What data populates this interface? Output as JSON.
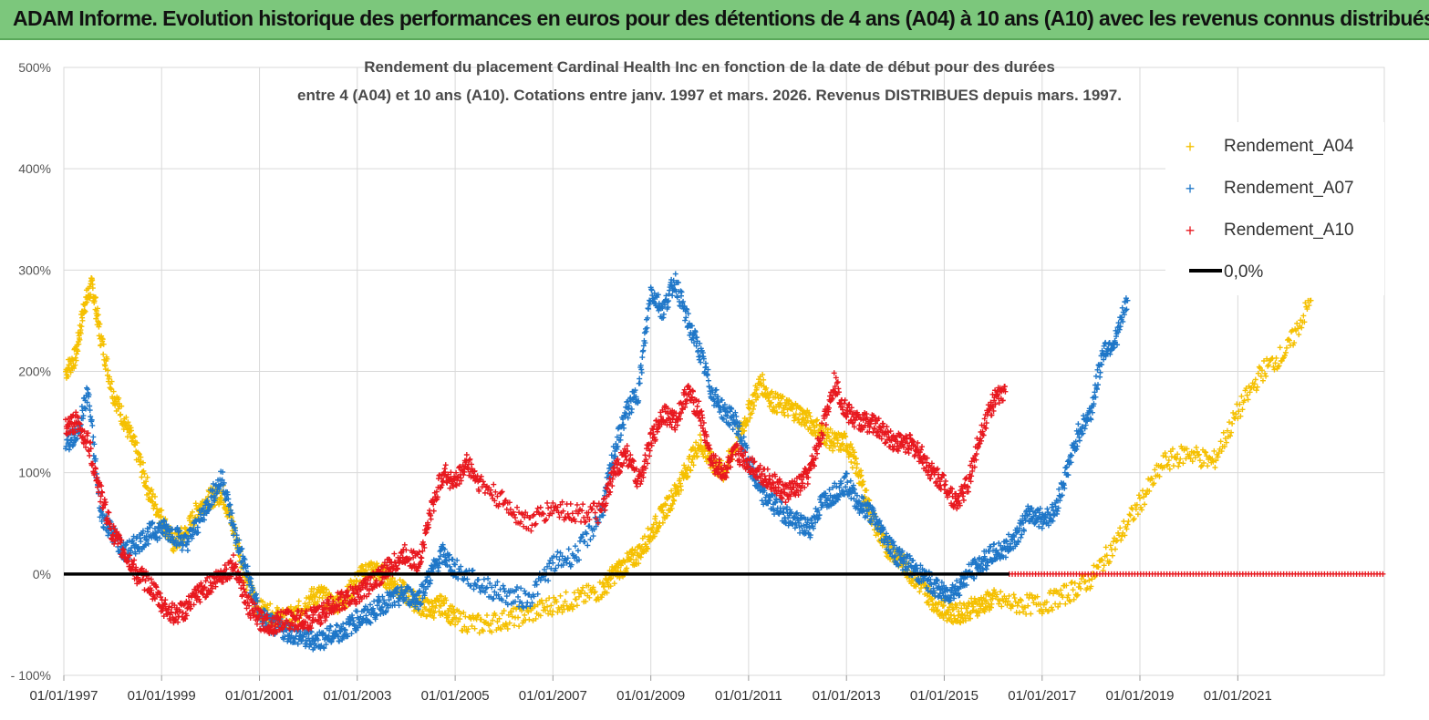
{
  "banner": {
    "title": "ADAM Informe. Evolution historique des performances en euros pour des détentions de 4 ans (A04) à 10 ans (A10) avec les revenus connus distribués"
  },
  "chart_data": {
    "type": "scatter",
    "title_lines": [
      "Rendement du placement Cardinal Health Inc en fonction de la date de début pour des durées",
      "entre 4 (A04) et 10 ans (A10). Cotations entre janv. 1997 et mars. 2026. Revenus DISTRIBUES depuis mars. 1997."
    ],
    "xlim": [
      "1997-01-01",
      "2023-12-31"
    ],
    "ylim": [
      -100,
      500
    ],
    "x_ticks": [
      "01/01/1997",
      "01/01/1999",
      "01/01/2001",
      "01/01/2003",
      "01/01/2005",
      "01/01/2007",
      "01/01/2009",
      "01/01/2011",
      "01/01/2013",
      "01/01/2015",
      "01/01/2017",
      "01/01/2019",
      "01/01/2021"
    ],
    "y_ticks": [
      {
        "value": -100,
        "label": "- 100%"
      },
      {
        "value": 0,
        "label": "0%"
      },
      {
        "value": 100,
        "label": "100%"
      },
      {
        "value": 200,
        "label": "200%"
      },
      {
        "value": 300,
        "label": "300%"
      },
      {
        "value": 400,
        "label": "400%"
      },
      {
        "value": 500,
        "label": "500%"
      }
    ],
    "grid": true,
    "legend_position": "top-right",
    "reference_line": {
      "name": "0,0%",
      "value": 0,
      "color": "#000000"
    },
    "series": [
      {
        "name": "Rendement_A04",
        "color": "#f5c000",
        "points": [
          [
            "1997-01-15",
            200
          ],
          [
            "1997-04-01",
            215
          ],
          [
            "1997-06-01",
            265
          ],
          [
            "1997-08-01",
            285
          ],
          [
            "1997-10-01",
            235
          ],
          [
            "1998-01-01",
            180
          ],
          [
            "1998-04-01",
            150
          ],
          [
            "1998-07-01",
            120
          ],
          [
            "1998-10-01",
            80
          ],
          [
            "1999-01-01",
            55
          ],
          [
            "1999-04-01",
            30
          ],
          [
            "1999-07-01",
            40
          ],
          [
            "1999-10-01",
            65
          ],
          [
            "2000-01-01",
            75
          ],
          [
            "2000-04-01",
            80
          ],
          [
            "2000-07-01",
            40
          ],
          [
            "2000-10-01",
            -10
          ],
          [
            "2001-01-01",
            -35
          ],
          [
            "2001-04-01",
            -40
          ],
          [
            "2001-07-01",
            -45
          ],
          [
            "2001-10-01",
            -40
          ],
          [
            "2002-01-01",
            -25
          ],
          [
            "2002-04-01",
            -20
          ],
          [
            "2002-07-01",
            -30
          ],
          [
            "2002-10-01",
            -25
          ],
          [
            "2003-01-01",
            -5
          ],
          [
            "2003-04-01",
            5
          ],
          [
            "2003-07-01",
            0
          ],
          [
            "2003-10-01",
            -10
          ],
          [
            "2004-01-01",
            -20
          ],
          [
            "2004-04-01",
            -30
          ],
          [
            "2004-07-01",
            -35
          ],
          [
            "2004-10-01",
            -30
          ],
          [
            "2005-01-01",
            -45
          ],
          [
            "2005-07-01",
            -50
          ],
          [
            "2006-01-01",
            -45
          ],
          [
            "2006-07-01",
            -40
          ],
          [
            "2007-01-01",
            -30
          ],
          [
            "2007-07-01",
            -25
          ],
          [
            "2008-01-01",
            -15
          ],
          [
            "2008-04-01",
            0
          ],
          [
            "2008-07-01",
            10
          ],
          [
            "2008-10-01",
            20
          ],
          [
            "2009-01-01",
            40
          ],
          [
            "2009-04-01",
            60
          ],
          [
            "2009-07-01",
            80
          ],
          [
            "2009-10-01",
            105
          ],
          [
            "2010-01-01",
            130
          ],
          [
            "2010-04-01",
            110
          ],
          [
            "2010-07-01",
            100
          ],
          [
            "2010-10-01",
            130
          ],
          [
            "2011-01-01",
            160
          ],
          [
            "2011-04-01",
            190
          ],
          [
            "2011-07-01",
            170
          ],
          [
            "2011-10-01",
            165
          ],
          [
            "2012-01-01",
            160
          ],
          [
            "2012-04-01",
            150
          ],
          [
            "2012-07-01",
            140
          ],
          [
            "2012-10-01",
            130
          ],
          [
            "2013-01-01",
            130
          ],
          [
            "2013-04-01",
            100
          ],
          [
            "2013-07-01",
            60
          ],
          [
            "2013-10-01",
            30
          ],
          [
            "2014-01-01",
            20
          ],
          [
            "2014-04-01",
            5
          ],
          [
            "2014-07-01",
            -10
          ],
          [
            "2014-10-01",
            -25
          ],
          [
            "2015-01-01",
            -35
          ],
          [
            "2015-04-01",
            -40
          ],
          [
            "2015-07-01",
            -35
          ],
          [
            "2015-10-01",
            -30
          ],
          [
            "2016-01-01",
            -25
          ],
          [
            "2016-07-01",
            -30
          ],
          [
            "2017-01-01",
            -30
          ],
          [
            "2017-07-01",
            -20
          ],
          [
            "2018-01-01",
            -5
          ],
          [
            "2018-07-01",
            30
          ],
          [
            "2019-01-01",
            70
          ],
          [
            "2019-07-01",
            110
          ],
          [
            "2020-01-01",
            120
          ],
          [
            "2020-07-01",
            110
          ],
          [
            "2021-01-01",
            160
          ],
          [
            "2021-07-01",
            200
          ],
          [
            "2022-01-01",
            220
          ],
          [
            "2022-07-01",
            270
          ]
        ]
      },
      {
        "name": "Rendement_A07",
        "color": "#1f77c8",
        "points": [
          [
            "1997-01-15",
            130
          ],
          [
            "1997-04-01",
            135
          ],
          [
            "1997-07-01",
            180
          ],
          [
            "1997-10-01",
            60
          ],
          [
            "1998-01-01",
            40
          ],
          [
            "1998-04-01",
            20
          ],
          [
            "1998-07-01",
            30
          ],
          [
            "1998-10-01",
            40
          ],
          [
            "1999-01-01",
            45
          ],
          [
            "1999-04-01",
            40
          ],
          [
            "1999-07-01",
            30
          ],
          [
            "1999-10-01",
            50
          ],
          [
            "2000-01-01",
            75
          ],
          [
            "2000-04-01",
            95
          ],
          [
            "2000-07-01",
            40
          ],
          [
            "2000-10-01",
            0
          ],
          [
            "2001-01-01",
            -40
          ],
          [
            "2001-04-01",
            -50
          ],
          [
            "2001-07-01",
            -55
          ],
          [
            "2001-10-01",
            -60
          ],
          [
            "2002-01-01",
            -65
          ],
          [
            "2002-04-01",
            -65
          ],
          [
            "2002-07-01",
            -60
          ],
          [
            "2002-10-01",
            -55
          ],
          [
            "2003-01-01",
            -45
          ],
          [
            "2003-04-01",
            -40
          ],
          [
            "2003-07-01",
            -30
          ],
          [
            "2003-10-01",
            -25
          ],
          [
            "2004-01-01",
            -20
          ],
          [
            "2004-04-01",
            -25
          ],
          [
            "2004-07-01",
            0
          ],
          [
            "2004-10-01",
            20
          ],
          [
            "2005-01-01",
            5
          ],
          [
            "2005-07-01",
            -10
          ],
          [
            "2006-01-01",
            -20
          ],
          [
            "2006-07-01",
            -25
          ],
          [
            "2007-01-01",
            10
          ],
          [
            "2007-07-01",
            20
          ],
          [
            "2008-01-01",
            60
          ],
          [
            "2008-04-01",
            120
          ],
          [
            "2008-07-01",
            160
          ],
          [
            "2008-10-01",
            180
          ],
          [
            "2009-01-01",
            280
          ],
          [
            "2009-04-01",
            260
          ],
          [
            "2009-07-01",
            290
          ],
          [
            "2009-10-01",
            250
          ],
          [
            "2010-01-01",
            220
          ],
          [
            "2010-04-01",
            180
          ],
          [
            "2010-07-01",
            160
          ],
          [
            "2010-10-01",
            150
          ],
          [
            "2011-01-01",
            110
          ],
          [
            "2011-04-01",
            80
          ],
          [
            "2011-07-01",
            70
          ],
          [
            "2011-10-01",
            60
          ],
          [
            "2012-01-01",
            50
          ],
          [
            "2012-04-01",
            45
          ],
          [
            "2012-07-01",
            70
          ],
          [
            "2012-10-01",
            80
          ],
          [
            "2013-01-01",
            90
          ],
          [
            "2013-04-01",
            70
          ],
          [
            "2013-07-01",
            60
          ],
          [
            "2013-10-01",
            40
          ],
          [
            "2014-01-01",
            20
          ],
          [
            "2014-04-01",
            10
          ],
          [
            "2014-07-01",
            0
          ],
          [
            "2014-10-01",
            -10
          ],
          [
            "2015-01-01",
            -20
          ],
          [
            "2015-04-01",
            -15
          ],
          [
            "2015-07-01",
            0
          ],
          [
            "2015-10-01",
            10
          ],
          [
            "2016-01-01",
            20
          ],
          [
            "2016-04-01",
            25
          ],
          [
            "2016-07-01",
            40
          ],
          [
            "2016-10-01",
            60
          ],
          [
            "2017-01-01",
            55
          ],
          [
            "2017-04-01",
            60
          ],
          [
            "2017-07-01",
            100
          ],
          [
            "2017-10-01",
            140
          ],
          [
            "2018-01-01",
            160
          ],
          [
            "2018-04-01",
            220
          ],
          [
            "2018-07-01",
            230
          ],
          [
            "2018-10-01",
            270
          ]
        ]
      },
      {
        "name": "Rendement_A10",
        "color": "#e8181f",
        "points": [
          [
            "1997-01-15",
            145
          ],
          [
            "1997-04-01",
            150
          ],
          [
            "1997-07-01",
            130
          ],
          [
            "1997-10-01",
            80
          ],
          [
            "1998-01-01",
            40
          ],
          [
            "1998-04-01",
            20
          ],
          [
            "1998-07-01",
            0
          ],
          [
            "1998-10-01",
            -10
          ],
          [
            "1999-01-01",
            -30
          ],
          [
            "1999-04-01",
            -40
          ],
          [
            "1999-07-01",
            -35
          ],
          [
            "1999-10-01",
            -20
          ],
          [
            "2000-01-01",
            -10
          ],
          [
            "2000-04-01",
            0
          ],
          [
            "2000-07-01",
            10
          ],
          [
            "2000-10-01",
            -30
          ],
          [
            "2001-01-01",
            -45
          ],
          [
            "2001-04-01",
            -50
          ],
          [
            "2001-07-01",
            -45
          ],
          [
            "2001-10-01",
            -45
          ],
          [
            "2002-01-01",
            -45
          ],
          [
            "2002-04-01",
            -40
          ],
          [
            "2002-07-01",
            -30
          ],
          [
            "2002-10-01",
            -25
          ],
          [
            "2003-01-01",
            -20
          ],
          [
            "2003-04-01",
            -10
          ],
          [
            "2003-07-01",
            0
          ],
          [
            "2003-10-01",
            10
          ],
          [
            "2004-01-01",
            20
          ],
          [
            "2004-04-01",
            10
          ],
          [
            "2004-07-01",
            60
          ],
          [
            "2004-10-01",
            100
          ],
          [
            "2005-01-01",
            90
          ],
          [
            "2005-04-01",
            110
          ],
          [
            "2005-07-01",
            90
          ],
          [
            "2006-01-01",
            70
          ],
          [
            "2006-07-01",
            50
          ],
          [
            "2007-01-01",
            65
          ],
          [
            "2007-07-01",
            60
          ],
          [
            "2008-01-01",
            60
          ],
          [
            "2008-04-01",
            100
          ],
          [
            "2008-07-01",
            120
          ],
          [
            "2008-10-01",
            90
          ],
          [
            "2009-01-01",
            130
          ],
          [
            "2009-04-01",
            160
          ],
          [
            "2009-07-01",
            150
          ],
          [
            "2009-10-01",
            180
          ],
          [
            "2010-01-01",
            160
          ],
          [
            "2010-04-01",
            110
          ],
          [
            "2010-07-01",
            100
          ],
          [
            "2010-10-01",
            120
          ],
          [
            "2011-01-01",
            110
          ],
          [
            "2011-04-01",
            100
          ],
          [
            "2011-07-01",
            90
          ],
          [
            "2011-10-01",
            80
          ],
          [
            "2012-01-01",
            85
          ],
          [
            "2012-04-01",
            100
          ],
          [
            "2012-07-01",
            140
          ],
          [
            "2012-10-01",
            190
          ],
          [
            "2013-01-01",
            160
          ],
          [
            "2013-04-01",
            150
          ],
          [
            "2013-07-01",
            150
          ],
          [
            "2013-10-01",
            140
          ],
          [
            "2014-01-01",
            130
          ],
          [
            "2014-04-01",
            130
          ],
          [
            "2014-07-01",
            120
          ],
          [
            "2014-10-01",
            100
          ],
          [
            "2015-01-01",
            90
          ],
          [
            "2015-04-01",
            70
          ],
          [
            "2015-07-01",
            90
          ],
          [
            "2015-10-01",
            140
          ],
          [
            "2016-01-01",
            170
          ],
          [
            "2016-04-01",
            180
          ]
        ],
        "zero_segment": [
          "2016-05-01",
          "2023-12-31",
          0
        ]
      }
    ]
  }
}
